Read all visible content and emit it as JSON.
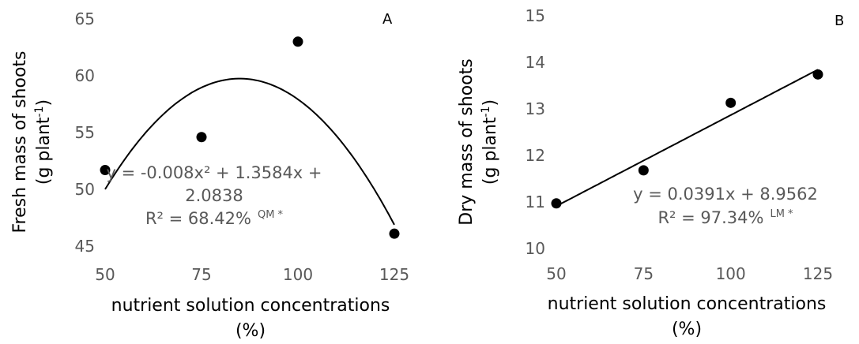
{
  "chart_data": [
    {
      "type": "scatter",
      "panel_label": "A",
      "ylabel_line1": "Fresh mass of shoots",
      "ylabel_line2": "(g plant",
      "ylabel_sup": "-1",
      "ylabel_close": ")",
      "xlabel_line1": "nutrient solution concentrations",
      "xlabel_line2": "(%)",
      "x_ticks": [
        "50",
        "75",
        "100",
        "125"
      ],
      "y_ticks": [
        "45",
        "50",
        "55",
        "60",
        "65"
      ],
      "xlim": [
        50,
        125
      ],
      "ylim": [
        45,
        65
      ],
      "grid": false,
      "x": [
        50,
        75,
        100,
        125
      ],
      "y": [
        51.7,
        54.6,
        63.0,
        46.1
      ],
      "trendline": {
        "kind": "quadratic",
        "a": -0.008,
        "b": 1.3584,
        "c": 2.0838
      },
      "equation_line1": "y = -0.008x² + 1.3584x +",
      "equation_line2": "2.0838",
      "r2_text": "R² = 68.42%",
      "r2_note": "QM *",
      "marker_color": "#000000",
      "line_color": "#000000"
    },
    {
      "type": "scatter",
      "panel_label": "B",
      "ylabel_line1": "Dry mass of shoots",
      "ylabel_line2": "(g plant",
      "ylabel_sup": "-1",
      "ylabel_close": ")",
      "xlabel_line1": "nutrient solution concentrations",
      "xlabel_line2": "(%)",
      "x_ticks": [
        "50",
        "75",
        "100",
        "125"
      ],
      "y_ticks": [
        "10",
        "11",
        "12",
        "13",
        "14",
        "15"
      ],
      "xlim": [
        50,
        125
      ],
      "ylim": [
        10,
        15
      ],
      "grid": false,
      "x": [
        50,
        75,
        100,
        125
      ],
      "y": [
        10.97,
        11.68,
        13.13,
        13.74
      ],
      "trendline": {
        "kind": "linear",
        "slope": 0.0391,
        "intercept": 8.9562
      },
      "equation_line1": "y = 0.0391x + 8.9562",
      "r2_text": "R² = 97.34%",
      "r2_note": "LM *",
      "marker_color": "#000000",
      "line_color": "#000000"
    }
  ]
}
